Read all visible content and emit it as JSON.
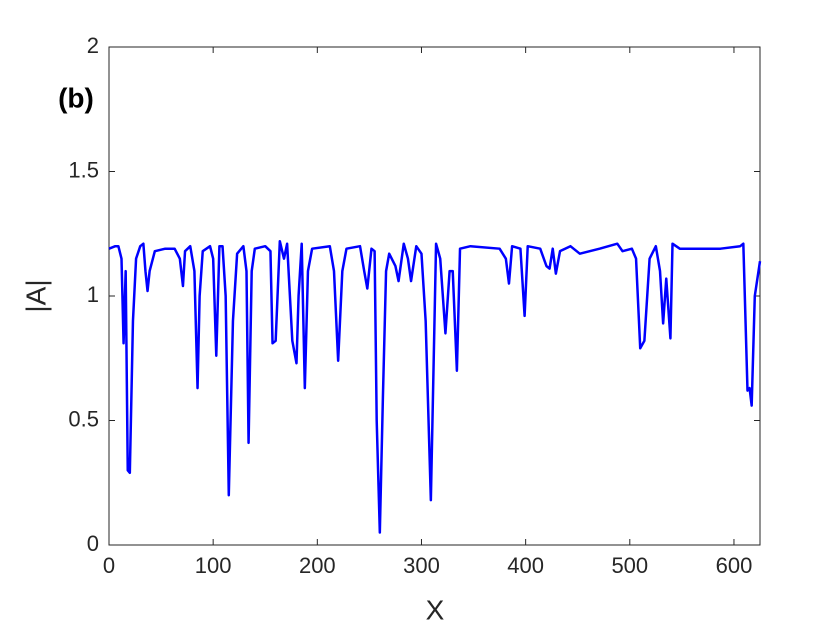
{
  "chart_data": {
    "type": "line",
    "annotation": "(b)",
    "xlabel": "X",
    "ylabel": "|A|",
    "xlim": [
      0,
      625
    ],
    "ylim": [
      0,
      2
    ],
    "xticks": [
      0,
      100,
      200,
      300,
      400,
      500,
      600
    ],
    "yticks": [
      0,
      0.5,
      1,
      1.5,
      2
    ],
    "x": [
      0,
      6,
      9,
      12,
      14,
      16,
      18,
      20,
      23,
      26,
      30,
      33,
      35,
      37,
      39,
      44,
      54,
      63,
      68,
      71,
      73,
      78,
      82,
      85,
      87,
      90,
      97,
      100,
      103,
      106,
      109,
      112,
      115,
      119,
      123,
      129,
      132,
      134,
      137,
      140,
      150,
      155,
      157,
      160,
      164,
      168,
      171,
      176,
      180,
      182,
      185,
      188,
      191,
      195,
      212,
      216,
      220,
      224,
      228,
      241,
      245,
      248,
      252,
      255,
      257,
      260,
      263,
      266,
      269,
      275,
      278,
      283,
      287,
      290,
      295,
      300,
      304,
      309,
      314,
      318,
      323,
      327,
      330,
      334,
      337,
      347,
      375,
      381,
      384,
      387,
      395,
      399,
      402,
      414,
      420,
      423,
      426,
      429,
      433,
      443,
      452,
      471,
      488,
      493,
      502,
      506,
      510,
      514,
      519,
      525,
      529,
      532,
      535,
      539,
      541,
      548,
      587,
      606,
      609,
      613,
      615,
      617,
      620,
      625
    ],
    "series": [
      {
        "name": "|A|",
        "color": "#0000ff",
        "values": [
          1.19,
          1.2,
          1.2,
          1.15,
          0.81,
          1.1,
          0.3,
          0.29,
          0.9,
          1.15,
          1.2,
          1.21,
          1.1,
          1.02,
          1.1,
          1.18,
          1.19,
          1.19,
          1.15,
          1.04,
          1.18,
          1.2,
          1.1,
          0.63,
          1.0,
          1.18,
          1.2,
          1.15,
          0.76,
          1.2,
          1.2,
          1.0,
          0.2,
          0.9,
          1.17,
          1.2,
          1.1,
          0.41,
          1.1,
          1.19,
          1.2,
          1.18,
          0.81,
          0.82,
          1.22,
          1.15,
          1.21,
          0.82,
          0.73,
          1.0,
          1.21,
          0.63,
          1.1,
          1.19,
          1.2,
          1.1,
          0.74,
          1.1,
          1.19,
          1.2,
          1.1,
          1.03,
          1.19,
          1.18,
          0.5,
          0.05,
          0.6,
          1.1,
          1.17,
          1.12,
          1.06,
          1.21,
          1.15,
          1.06,
          1.2,
          1.17,
          0.9,
          0.18,
          1.21,
          1.15,
          0.85,
          1.1,
          1.1,
          0.7,
          1.19,
          1.2,
          1.19,
          1.15,
          1.05,
          1.2,
          1.19,
          0.92,
          1.2,
          1.19,
          1.12,
          1.11,
          1.19,
          1.09,
          1.18,
          1.2,
          1.17,
          1.19,
          1.21,
          1.18,
          1.19,
          1.15,
          0.79,
          0.82,
          1.15,
          1.2,
          1.1,
          0.89,
          1.07,
          0.83,
          1.21,
          1.19,
          1.19,
          1.2,
          1.21,
          0.62,
          0.63,
          0.56,
          1.0,
          1.14
        ]
      }
    ]
  }
}
